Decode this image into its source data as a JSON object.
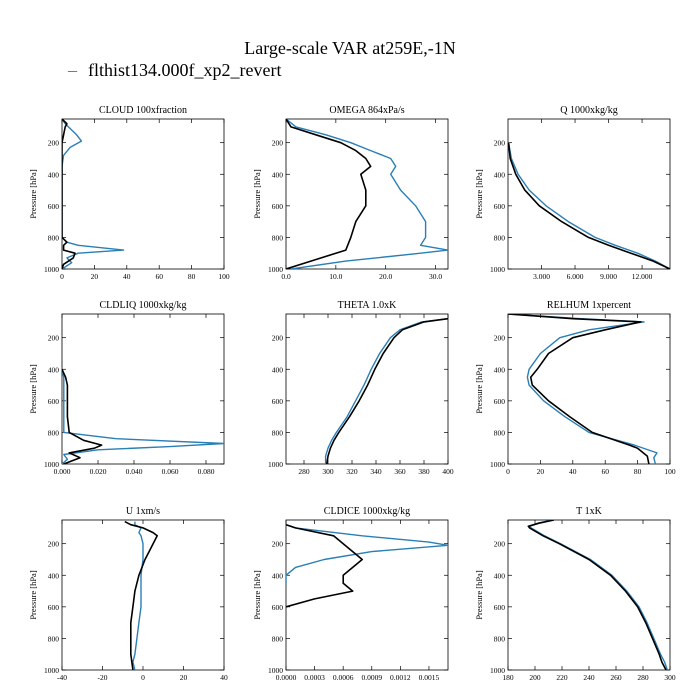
{
  "title": "Large-scale VAR at259E,-1N",
  "legend": {
    "marker": "–",
    "label": "flthist134.000f_xp2_revert",
    "color": "#2a7fb5"
  },
  "colors": {
    "series_a": "#000000",
    "series_b": "#2a7fb5"
  },
  "chart_data": [
    {
      "type": "line",
      "title": "CLOUD  100xfraction",
      "ylabel": "Pressure [hPa]",
      "ylim": [
        1000,
        50
      ],
      "yticks": [
        200,
        400,
        600,
        800,
        1000
      ],
      "xlim": [
        0,
        100
      ],
      "xticks": [
        0,
        20,
        40,
        60,
        80,
        100
      ],
      "xtick_labels": [
        "0",
        "20",
        "40",
        "60",
        "80",
        "100"
      ],
      "series": [
        {
          "y": [
            50,
            80,
            100,
            150,
            200,
            250,
            300,
            400,
            500,
            600,
            700,
            800,
            830,
            850,
            880,
            900,
            930,
            970,
            1000
          ],
          "values": [
            0,
            3,
            2,
            1,
            0,
            0,
            0,
            0,
            0,
            0,
            0,
            0,
            3,
            1,
            1,
            8,
            7,
            1,
            0
          ]
        },
        {
          "y": [
            50,
            80,
            110,
            150,
            190,
            230,
            280,
            350,
            500,
            600,
            700,
            800,
            830,
            850,
            880,
            900,
            930,
            960,
            1000
          ],
          "values": [
            0,
            2,
            5,
            9,
            12,
            5,
            1,
            0,
            0,
            0,
            0,
            0,
            3,
            10,
            38,
            10,
            3,
            6,
            0
          ]
        }
      ]
    },
    {
      "type": "line",
      "title": "OMEGA  864xPa/s",
      "ylabel": "Pressure [hPa]",
      "ylim": [
        1000,
        50
      ],
      "yticks": [
        200,
        400,
        600,
        800,
        1000
      ],
      "xlim": [
        0,
        32.5
      ],
      "xticks": [
        0,
        10,
        20,
        30
      ],
      "xtick_labels": [
        "0.0",
        "10.0",
        "20.0",
        "30.0"
      ],
      "series": [
        {
          "y": [
            50,
            100,
            150,
            200,
            250,
            300,
            350,
            400,
            500,
            600,
            700,
            800,
            880,
            950,
            1000
          ],
          "values": [
            0,
            1,
            6,
            11,
            14,
            16,
            17,
            15,
            16,
            16,
            14,
            13,
            12,
            5,
            0
          ]
        },
        {
          "y": [
            50,
            100,
            150,
            200,
            250,
            300,
            350,
            400,
            500,
            600,
            700,
            800,
            850,
            880,
            900,
            950,
            1000
          ],
          "values": [
            0,
            2,
            8,
            13,
            17,
            21,
            22,
            21,
            23,
            26,
            28,
            28,
            27,
            32.5,
            27,
            12,
            1
          ]
        }
      ]
    },
    {
      "type": "line",
      "title": "Q  1000xkg/kg",
      "ylabel": "Pressure [hPa]",
      "ylim": [
        1000,
        50
      ],
      "yticks": [
        200,
        400,
        600,
        800,
        1000
      ],
      "xlim": [
        0,
        14.5
      ],
      "xticks": [
        3,
        6,
        9,
        12
      ],
      "xtick_labels": [
        "3.000",
        "6.000",
        "9.000",
        "12.000"
      ],
      "series": [
        {
          "y": [
            200,
            300,
            400,
            500,
            600,
            700,
            800,
            850,
            900,
            950,
            1000
          ],
          "values": [
            0.05,
            0.2,
            0.7,
            1.5,
            2.8,
            4.8,
            7.2,
            9.0,
            11.0,
            13.0,
            14.5
          ]
        },
        {
          "y": [
            200,
            300,
            400,
            500,
            600,
            700,
            800,
            850,
            900,
            950,
            1000
          ],
          "values": [
            0.05,
            0.3,
            0.9,
            1.9,
            3.4,
            5.4,
            7.8,
            9.6,
            11.6,
            13.2,
            14.5
          ]
        }
      ]
    },
    {
      "type": "line",
      "title": "CLDLIQ  1000xkg/kg",
      "ylabel": "Pressure [hPa]",
      "ylim": [
        1000,
        50
      ],
      "yticks": [
        200,
        400,
        600,
        800,
        1000
      ],
      "xlim": [
        0,
        0.09
      ],
      "xticks": [
        0,
        0.02,
        0.04,
        0.06,
        0.08
      ],
      "xtick_labels": [
        "0.000",
        "0.020",
        "0.040",
        "0.060",
        "0.080"
      ],
      "series": [
        {
          "y": [
            400,
            450,
            500,
            600,
            700,
            800,
            850,
            880,
            900,
            930,
            960,
            1000
          ],
          "values": [
            0,
            0.002,
            0.003,
            0.003,
            0.003,
            0.004,
            0.012,
            0.022,
            0.018,
            0.004,
            0.01,
            0.001
          ]
        },
        {
          "y": [
            400,
            450,
            500,
            600,
            700,
            800,
            840,
            870,
            890,
            910,
            940,
            970,
            1000
          ],
          "values": [
            0,
            0.001,
            0.001,
            0.001,
            0.001,
            0.001,
            0.03,
            0.09,
            0.06,
            0.02,
            0.001,
            0.003,
            0
          ]
        }
      ]
    },
    {
      "type": "line",
      "title": "THETA  1.0xK",
      "ylabel": "",
      "ylim": [
        1000,
        50
      ],
      "yticks": [
        200,
        400,
        600,
        800,
        1000
      ],
      "xlim": [
        265,
        400
      ],
      "xticks": [
        280,
        300,
        320,
        340,
        360,
        380,
        400
      ],
      "xtick_labels": [
        "280",
        "300",
        "320",
        "340",
        "360",
        "380",
        "400"
      ],
      "series": [
        {
          "y": [
            80,
            100,
            150,
            200,
            300,
            400,
            500,
            600,
            700,
            800,
            850,
            900,
            950,
            1000
          ],
          "values": [
            400,
            380,
            362,
            355,
            346,
            339,
            333,
            326,
            318,
            309,
            305,
            302,
            300,
            299
          ]
        },
        {
          "y": [
            80,
            100,
            150,
            200,
            300,
            400,
            500,
            600,
            700,
            800,
            850,
            900,
            950,
            1000
          ],
          "values": [
            400,
            378,
            360,
            352,
            343,
            336,
            330,
            323,
            316,
            307,
            303,
            300,
            298,
            298
          ]
        }
      ]
    },
    {
      "type": "line",
      "title": "RELHUM  1xpercent",
      "ylabel": "Pressure [hPa]",
      "ylim": [
        1000,
        50
      ],
      "yticks": [
        200,
        400,
        600,
        800,
        1000
      ],
      "xlim": [
        0,
        100
      ],
      "xticks": [
        0,
        20,
        40,
        60,
        80,
        100
      ],
      "xtick_labels": [
        "0",
        "20",
        "40",
        "60",
        "80",
        "100"
      ],
      "series": [
        {
          "y": [
            50,
            80,
            100,
            150,
            200,
            300,
            400,
            450,
            500,
            600,
            700,
            800,
            880,
            900,
            950,
            1000
          ],
          "values": [
            0,
            40,
            82,
            60,
            40,
            25,
            18,
            14,
            15,
            25,
            38,
            52,
            75,
            80,
            86,
            87
          ]
        },
        {
          "y": [
            50,
            80,
            100,
            150,
            200,
            300,
            400,
            450,
            500,
            600,
            700,
            800,
            880,
            930,
            960,
            1000
          ],
          "values": [
            0,
            45,
            84,
            50,
            32,
            20,
            13,
            12,
            13,
            22,
            35,
            50,
            78,
            92,
            90,
            91
          ]
        }
      ]
    },
    {
      "type": "line",
      "title": "U  1xm/s",
      "ylabel": "Pressure [hPa]",
      "ylim": [
        1000,
        50
      ],
      "yticks": [
        200,
        400,
        600,
        800,
        1000
      ],
      "xlim": [
        -40,
        40
      ],
      "xticks": [
        -40,
        -20,
        0,
        20,
        40
      ],
      "xtick_labels": [
        "-40",
        "-20",
        "0",
        "20",
        "40"
      ],
      "series": [
        {
          "y": [
            60,
            80,
            100,
            130,
            150,
            200,
            250,
            300,
            400,
            500,
            600,
            700,
            800,
            900,
            1000
          ],
          "values": [
            -9,
            -6,
            0,
            5,
            7,
            5,
            3,
            1,
            -2,
            -4,
            -5,
            -6,
            -6,
            -6,
            -5
          ]
        },
        {
          "y": [
            60,
            80,
            100,
            130,
            150,
            200,
            300,
            400,
            500,
            600,
            700,
            800,
            900,
            950,
            1000
          ],
          "values": [
            -4,
            -4,
            -1,
            -2,
            -1,
            0,
            0,
            -1,
            -1,
            -1,
            -2,
            -3,
            -4,
            -5,
            -4
          ]
        }
      ]
    },
    {
      "type": "line",
      "title": "CLDICE  1000xkg/kg",
      "ylabel": "Pressure [hPa]",
      "ylim": [
        1000,
        50
      ],
      "yticks": [
        200,
        400,
        600,
        800,
        1000
      ],
      "xlim": [
        0,
        0.0017
      ],
      "xticks": [
        0,
        0.0003,
        0.0006,
        0.0009,
        0.0012,
        0.0015
      ],
      "xtick_labels": [
        "0.0000",
        "0.0003",
        "0.0006",
        "0.0009",
        "0.0012",
        "0.0015"
      ],
      "series": [
        {
          "y": [
            80,
            100,
            150,
            200,
            250,
            300,
            350,
            400,
            450,
            500,
            550,
            600
          ],
          "values": [
            0,
            0.0001,
            0.0005,
            0.0006,
            0.0007,
            0.0008,
            0.0007,
            0.0006,
            0.0006,
            0.0007,
            0.0003,
            0
          ]
        },
        {
          "y": [
            80,
            100,
            150,
            190,
            210,
            230,
            250,
            300,
            350,
            400,
            450
          ],
          "values": [
            0,
            0.0001,
            0.0008,
            0.0015,
            0.0017,
            0.0013,
            0.0009,
            0.0004,
            0.0001,
            0,
            0
          ]
        }
      ]
    },
    {
      "type": "line",
      "title": "T  1xK",
      "ylabel": "Pressure [hPa]",
      "ylim": [
        1000,
        50
      ],
      "yticks": [
        200,
        400,
        600,
        800,
        1000
      ],
      "xlim": [
        180,
        300
      ],
      "xticks": [
        180,
        200,
        220,
        240,
        260,
        280,
        300
      ],
      "xtick_labels": [
        "180",
        "200",
        "220",
        "240",
        "260",
        "280",
        "300"
      ],
      "series": [
        {
          "y": [
            50,
            70,
            90,
            100,
            150,
            200,
            300,
            400,
            500,
            600,
            700,
            800,
            900,
            950,
            1000
          ],
          "values": [
            214,
            203,
            195,
            196,
            206,
            218,
            240,
            256,
            267,
            276,
            282,
            287,
            292,
            294,
            297
          ]
        },
        {
          "y": [
            50,
            70,
            90,
            100,
            150,
            200,
            300,
            400,
            500,
            600,
            700,
            800,
            900,
            950,
            1000
          ],
          "values": [
            213,
            202,
            196,
            197,
            207,
            219,
            241,
            257,
            268,
            277,
            283,
            288,
            293,
            296,
            298
          ]
        }
      ]
    }
  ]
}
